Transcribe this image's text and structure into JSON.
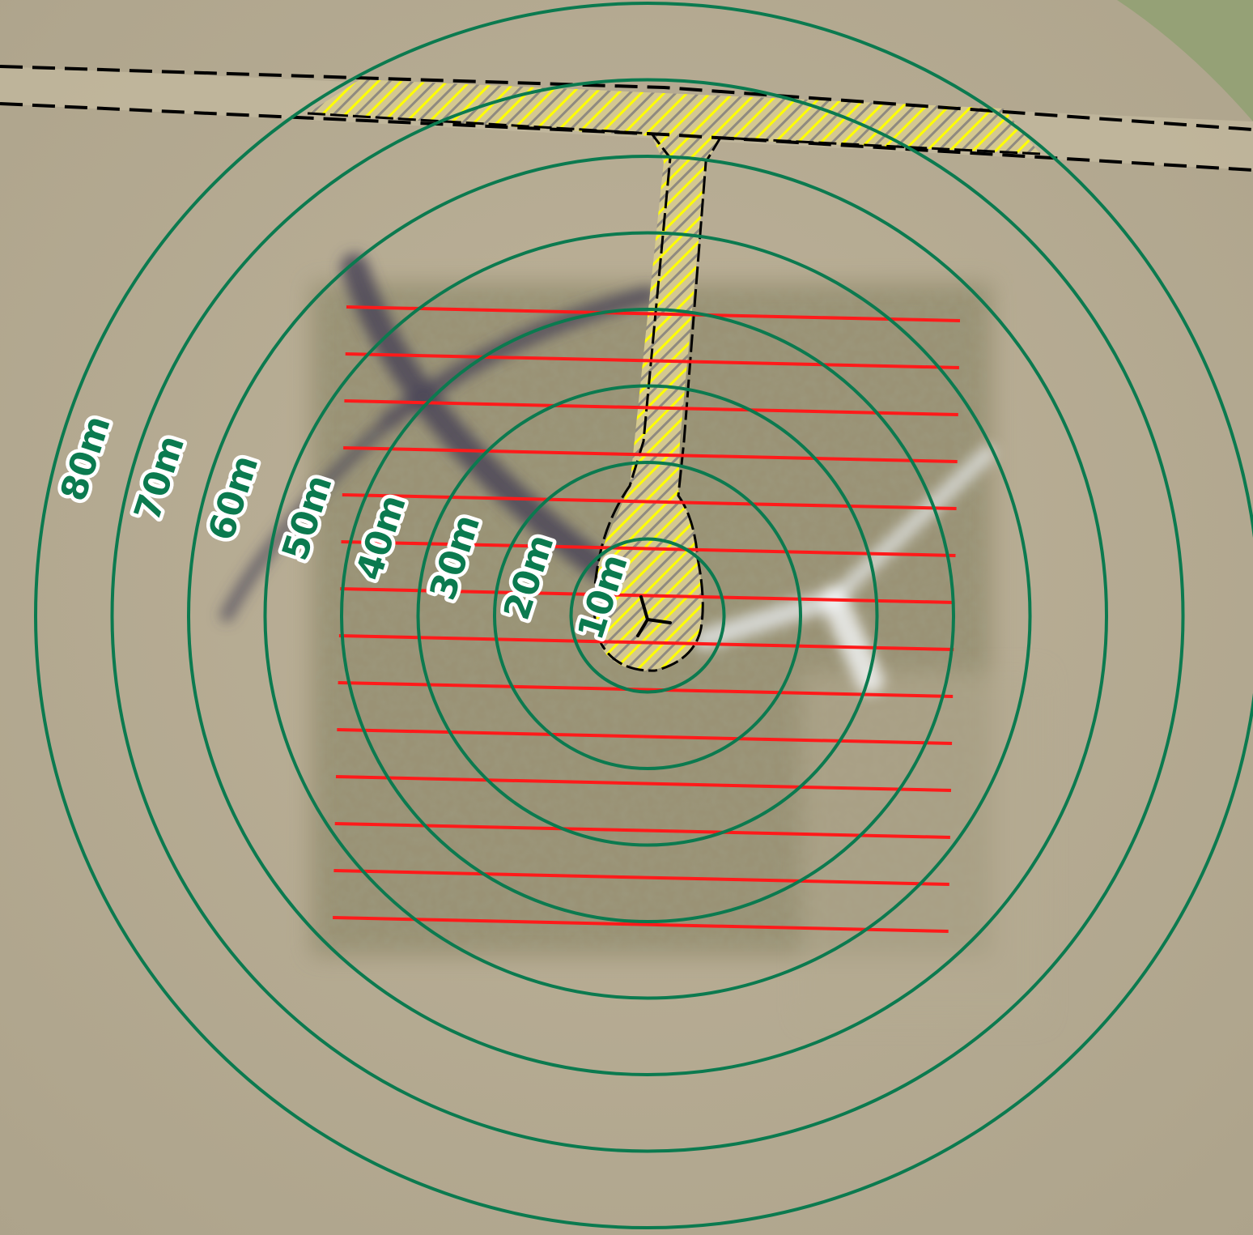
{
  "map": {
    "distance_rings": [
      {
        "radius_m": 10,
        "label": "10m"
      },
      {
        "radius_m": 20,
        "label": "20m"
      },
      {
        "radius_m": 30,
        "label": "30m"
      },
      {
        "radius_m": 40,
        "label": "40m"
      },
      {
        "radius_m": 50,
        "label": "50m"
      },
      {
        "radius_m": 60,
        "label": "60m"
      },
      {
        "radius_m": 70,
        "label": "70m"
      },
      {
        "radius_m": 80,
        "label": "80m"
      }
    ],
    "transect_line_count": 14,
    "colors": {
      "ring": "#0b7a4f",
      "ring_label": "#0b7a4f",
      "transect": "#ff1a1a",
      "access_fill": "#d8c985",
      "access_hatch": "#ffff00",
      "access_outline": "#000000",
      "field": "#b9ad95",
      "vegetation_plot": "#938d6f",
      "track_outline": "#000000"
    },
    "icons": {
      "turbine": "wind-turbine-icon"
    }
  }
}
